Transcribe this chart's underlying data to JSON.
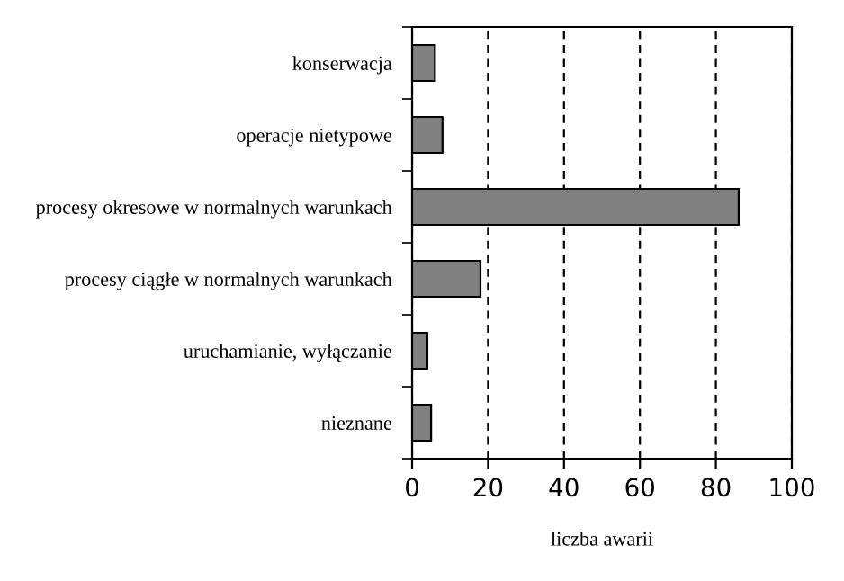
{
  "chart_data": {
    "type": "bar",
    "orientation": "horizontal",
    "xlabel": "liczba awarii",
    "categories": [
      "konserwacja",
      "operacje nietypowe",
      "procesy okresowe w normalnych warunkach",
      "procesy ciągłe w normalnych warunkach",
      "uruchamianie, wyłączanie",
      "nieznane"
    ],
    "values": [
      6,
      8,
      86,
      18,
      4,
      5
    ],
    "color": "#808080",
    "xlim": [
      0,
      100
    ],
    "xticks": [
      0,
      20,
      40,
      60,
      80,
      100
    ],
    "grid": "x",
    "legend": false
  }
}
